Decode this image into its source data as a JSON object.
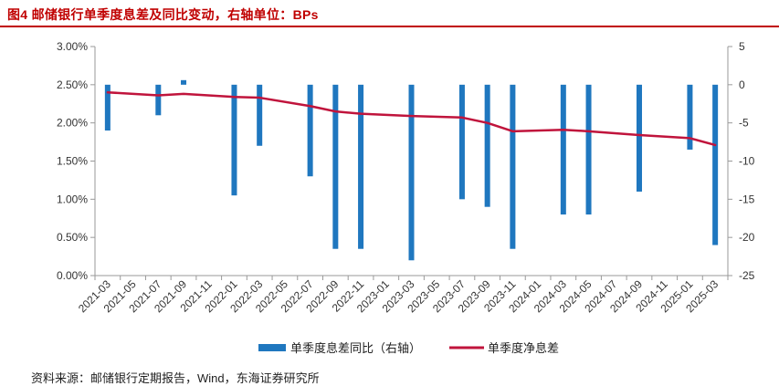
{
  "header": {
    "title": "图4 邮储银行单季度息差及同比变动，右轴单位：BPs"
  },
  "footer": {
    "source": "资料来源：邮储银行定期报告，Wind，东海证券研究所"
  },
  "colors": {
    "title": "#c00000",
    "bar": "#1f77bf",
    "line": "#c0143c",
    "axis": "#999999"
  },
  "chart_data": {
    "type": "bar+line",
    "categories": [
      "2021-03",
      "2021-05",
      "2021-07",
      "2021-09",
      "2021-11",
      "2022-01",
      "2022-03",
      "2022-05",
      "2022-07",
      "2022-09",
      "2022-11",
      "2023-01",
      "2023-03",
      "2023-05",
      "2023-07",
      "2023-09",
      "2023-11",
      "2024-01",
      "2024-03",
      "2024-05",
      "2024-07",
      "2024-09",
      "2024-11",
      "2025-01",
      "2025-03"
    ],
    "left_axis": {
      "min": 0,
      "max": 3,
      "ticks": [
        "0.00%",
        "0.50%",
        "1.00%",
        "1.50%",
        "2.00%",
        "2.50%",
        "3.00%"
      ]
    },
    "right_axis": {
      "min": -25,
      "max": 5,
      "ticks": [
        "-25",
        "-20",
        "-15",
        "-10",
        "-5",
        "0",
        "5"
      ]
    },
    "series": [
      {
        "name": "单季度息差同比（右轴）",
        "type": "bar",
        "axis": "right",
        "points": [
          {
            "x": "2021-03",
            "y": -6
          },
          {
            "x": "2021-07",
            "y": -4
          },
          {
            "x": "2021-09",
            "y": 0.6
          },
          {
            "x": "2022-01",
            "y": -14.5
          },
          {
            "x": "2022-03",
            "y": -8
          },
          {
            "x": "2022-07",
            "y": -12
          },
          {
            "x": "2022-09",
            "y": -21.5
          },
          {
            "x": "2022-11",
            "y": -21.5
          },
          {
            "x": "2023-03",
            "y": -23
          },
          {
            "x": "2023-07",
            "y": -15
          },
          {
            "x": "2023-09",
            "y": -16
          },
          {
            "x": "2023-11",
            "y": -21.5
          },
          {
            "x": "2024-03",
            "y": -17
          },
          {
            "x": "2024-05",
            "y": -17
          },
          {
            "x": "2024-09",
            "y": -14
          },
          {
            "x": "2025-01",
            "y": -8.5
          },
          {
            "x": "2025-03",
            "y": -21
          }
        ]
      },
      {
        "name": "单季度净息差",
        "type": "line",
        "axis": "left",
        "points": [
          {
            "x": "2021-03",
            "y": 2.4
          },
          {
            "x": "2021-07",
            "y": 2.36
          },
          {
            "x": "2021-09",
            "y": 2.38
          },
          {
            "x": "2022-01",
            "y": 2.34
          },
          {
            "x": "2022-03",
            "y": 2.33
          },
          {
            "x": "2022-07",
            "y": 2.22
          },
          {
            "x": "2022-09",
            "y": 2.15
          },
          {
            "x": "2022-11",
            "y": 2.12
          },
          {
            "x": "2023-03",
            "y": 2.09
          },
          {
            "x": "2023-07",
            "y": 2.07
          },
          {
            "x": "2023-09",
            "y": 2.0
          },
          {
            "x": "2023-11",
            "y": 1.89
          },
          {
            "x": "2024-03",
            "y": 1.91
          },
          {
            "x": "2024-05",
            "y": 1.89
          },
          {
            "x": "2024-09",
            "y": 1.84
          },
          {
            "x": "2025-01",
            "y": 1.8
          },
          {
            "x": "2025-03",
            "y": 1.71
          }
        ]
      }
    ],
    "legend": {
      "position": "bottom",
      "items": [
        "单季度息差同比（右轴）",
        "单季度净息差"
      ]
    },
    "grid": false
  }
}
